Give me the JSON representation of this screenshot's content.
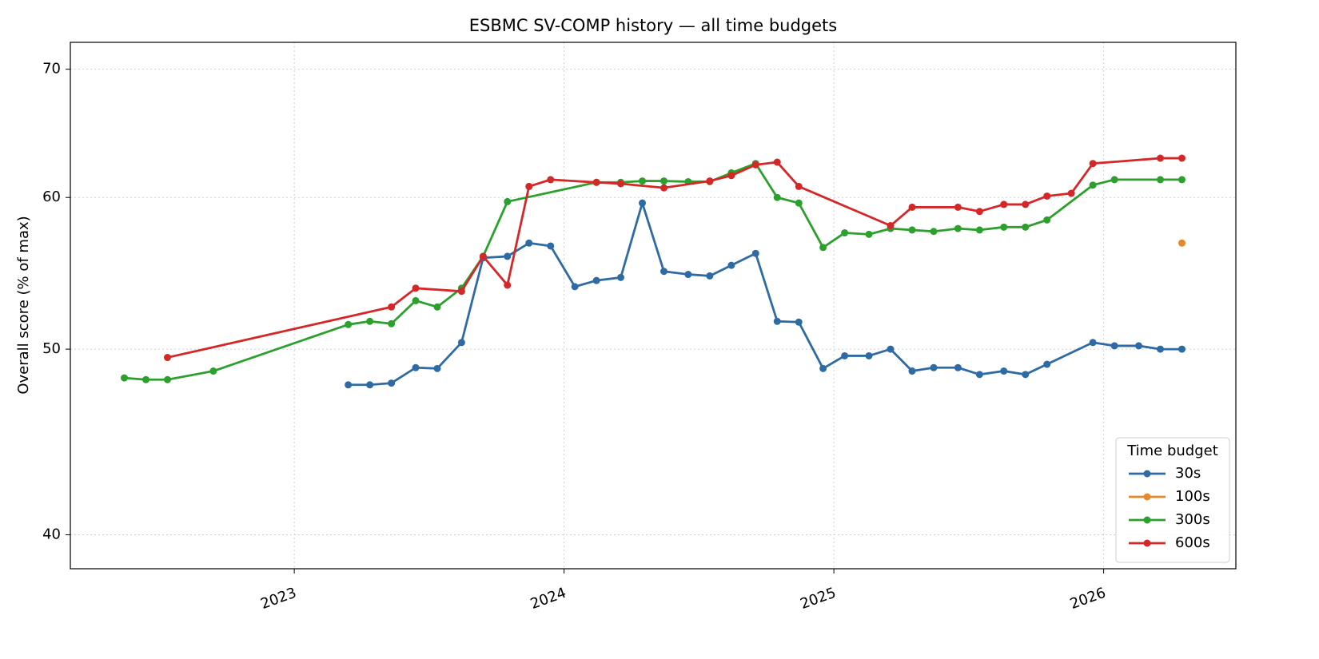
{
  "chart_data": {
    "type": "line",
    "title": "ESBMC SV-COMP history — all time budgets",
    "y_label": "Overall score (% of max)",
    "yscale": "log",
    "grid": true,
    "legend_title": "Time budget",
    "legend_position": "lower right",
    "xlim": [
      2022.17,
      2026.49
    ],
    "xticks": [
      2023,
      2024,
      2025,
      2026
    ],
    "ylim": [
      38.4,
      72.3
    ],
    "yticks": [
      40,
      50,
      60,
      70
    ],
    "series": [
      {
        "name": "30s",
        "color": "#2e6aa3",
        "x": [
          2023.2,
          2023.28,
          2023.36,
          2023.45,
          2023.53,
          2023.62,
          2023.7,
          2023.79,
          2023.87,
          2023.95,
          2024.04,
          2024.12,
          2024.21,
          2024.29,
          2024.37,
          2024.46,
          2024.54,
          2024.62,
          2024.71,
          2024.79,
          2024.87,
          2024.96,
          2025.04,
          2025.13,
          2025.21,
          2025.29,
          2025.37,
          2025.46,
          2025.54,
          2025.63,
          2025.71,
          2025.79,
          2025.96,
          2026.04,
          2026.13,
          2026.21,
          2026.29
        ],
        "values": [
          47.9,
          47.9,
          48.0,
          48.9,
          48.85,
          50.4,
          55.8,
          55.9,
          56.8,
          56.6,
          53.9,
          54.3,
          54.5,
          59.6,
          54.9,
          54.7,
          54.6,
          55.3,
          56.1,
          51.7,
          51.65,
          48.85,
          49.6,
          49.6,
          50.0,
          48.7,
          48.9,
          48.9,
          48.5,
          48.7,
          48.5,
          49.1,
          50.4,
          50.2,
          50.2,
          50.0,
          50.0
        ]
      },
      {
        "name": "100s",
        "color": "#e6882a",
        "x": [
          2026.29
        ],
        "values": [
          56.8
        ]
      },
      {
        "name": "300s",
        "color": "#2ca02c",
        "x": [
          2022.37,
          2022.45,
          2022.53,
          2022.7,
          2023.2,
          2023.28,
          2023.36,
          2023.45,
          2023.53,
          2023.62,
          2023.7,
          2023.79,
          2024.12,
          2024.21,
          2024.29,
          2024.37,
          2024.46,
          2024.54,
          2024.62,
          2024.71,
          2024.79,
          2024.87,
          2024.96,
          2025.04,
          2025.13,
          2025.21,
          2025.29,
          2025.37,
          2025.46,
          2025.54,
          2025.63,
          2025.71,
          2025.79,
          2025.96,
          2026.04,
          2026.21,
          2026.29
        ],
        "values": [
          48.3,
          48.2,
          48.2,
          48.7,
          51.5,
          51.7,
          51.55,
          53.0,
          52.6,
          53.8,
          55.9,
          59.7,
          61.1,
          61.1,
          61.2,
          61.2,
          61.15,
          61.15,
          61.8,
          62.5,
          60.0,
          59.6,
          56.5,
          57.5,
          57.4,
          57.8,
          57.7,
          57.6,
          57.8,
          57.7,
          57.9,
          57.9,
          58.4,
          60.9,
          61.3,
          61.3,
          61.3
        ]
      },
      {
        "name": "600s",
        "color": "#d62728",
        "x": [
          2022.53,
          2023.36,
          2023.45,
          2023.62,
          2023.7,
          2023.79,
          2023.87,
          2023.95,
          2024.12,
          2024.21,
          2024.37,
          2024.54,
          2024.62,
          2024.71,
          2024.79,
          2024.87,
          2025.21,
          2025.29,
          2025.46,
          2025.54,
          2025.63,
          2025.71,
          2025.79,
          2025.88,
          2025.96,
          2026.21,
          2026.29
        ],
        "values": [
          49.5,
          52.6,
          53.8,
          53.6,
          55.9,
          54.0,
          60.8,
          61.3,
          61.1,
          61.0,
          60.7,
          61.2,
          61.6,
          62.4,
          62.6,
          60.8,
          58.0,
          59.3,
          59.3,
          59.0,
          59.5,
          59.5,
          60.1,
          60.3,
          62.5,
          62.9,
          62.9
        ]
      }
    ]
  }
}
